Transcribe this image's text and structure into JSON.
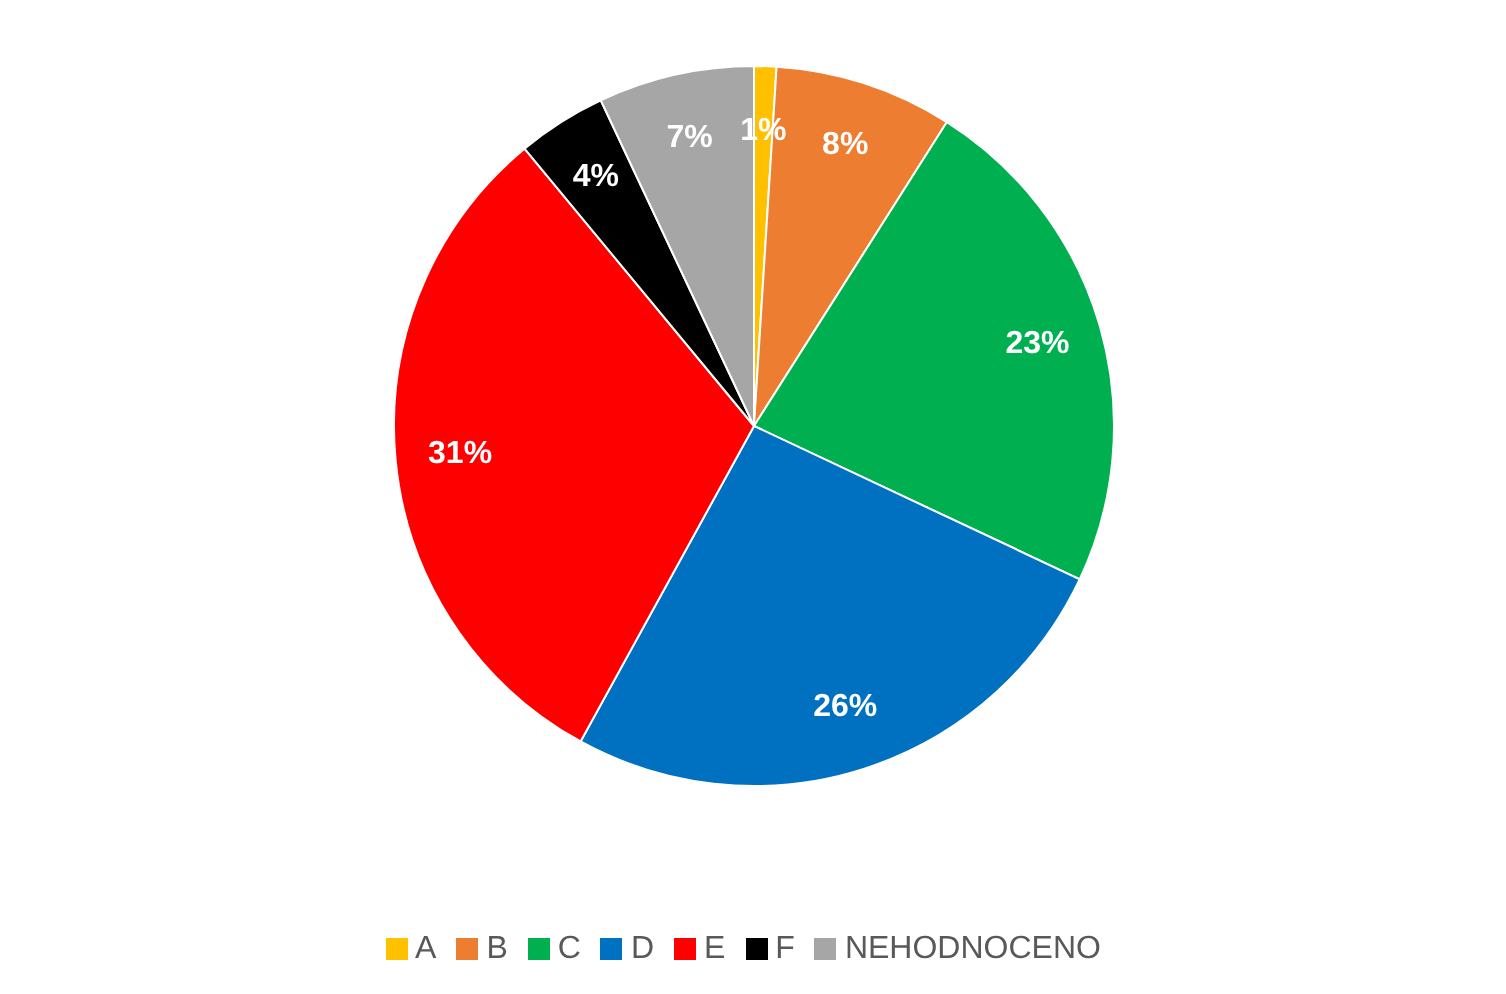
{
  "chart_data": {
    "type": "pie",
    "categories": [
      "A",
      "B",
      "C",
      "D",
      "E",
      "F",
      "NEHODNOCENO"
    ],
    "values": [
      1,
      8,
      23,
      26,
      31,
      4,
      7
    ],
    "value_labels": [
      "1%",
      "8%",
      "23%",
      "26%",
      "31%",
      "4%",
      "7%"
    ],
    "colors": [
      "#ffc000",
      "#ed7d31",
      "#00b050",
      "#0070c0",
      "#ff0000",
      "#000000",
      "#a6a6a6"
    ],
    "legend": "bottom"
  }
}
